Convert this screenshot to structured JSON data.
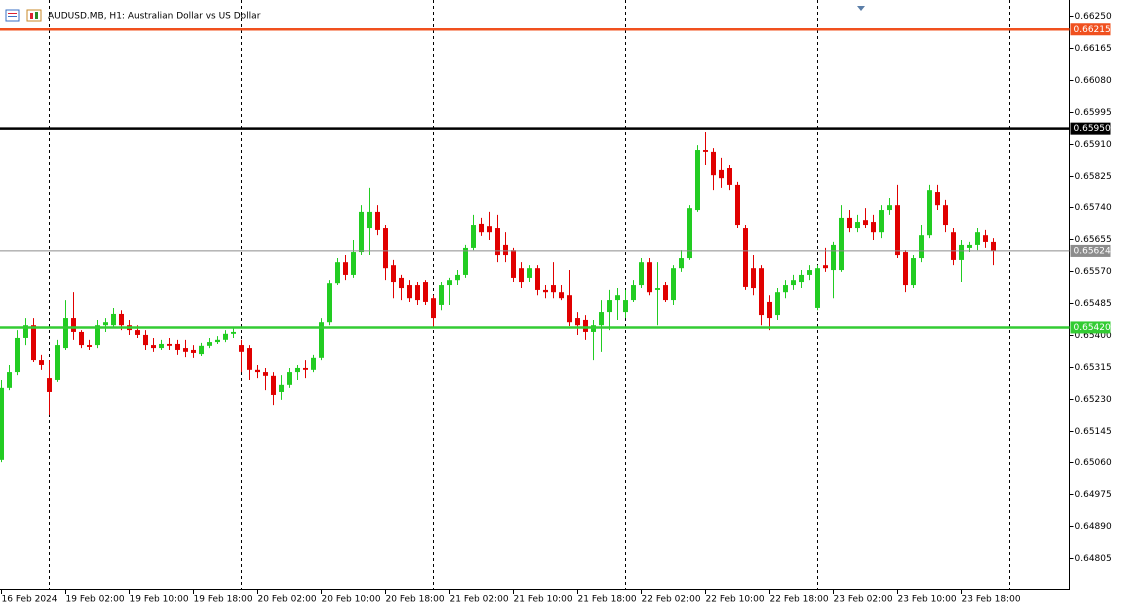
{
  "chart_data": {
    "type": "candlestick",
    "title": "AUDUSD.MB, H1:  Australian Dollar vs US Dollar",
    "categories": [
      "16 Feb 2024",
      null,
      null,
      null,
      null,
      null,
      null,
      null,
      "19 Feb 02:00",
      null,
      null,
      null,
      null,
      null,
      null,
      null,
      "19 Feb 10:00",
      null,
      null,
      null,
      null,
      null,
      null,
      null,
      "19 Feb 18:00",
      null,
      null,
      null,
      null,
      null,
      null,
      null,
      "20 Feb 02:00",
      null,
      null,
      null,
      null,
      null,
      null,
      null,
      "20 Feb 10:00",
      null,
      null,
      null,
      null,
      null,
      null,
      null,
      "20 Feb 18:00",
      null,
      null,
      null,
      null,
      null,
      null,
      null,
      "21 Feb 02:00",
      null,
      null,
      null,
      null,
      null,
      null,
      null,
      "21 Feb 10:00",
      null,
      null,
      null,
      null,
      null,
      null,
      null,
      "21 Feb 18:00",
      null,
      null,
      null,
      null,
      null,
      null,
      null,
      "22 Feb 02:00",
      null,
      null,
      null,
      null,
      null,
      null,
      null,
      "22 Feb 10:00",
      null,
      null,
      null,
      null,
      null,
      null,
      null,
      "22 Feb 18:00",
      null,
      null,
      null,
      null,
      null,
      null,
      null,
      "23 Feb 02:00",
      null,
      null,
      null,
      null,
      null,
      null,
      null,
      "23 Feb 10:00",
      null,
      null,
      null,
      null,
      null,
      null,
      null,
      "23 Feb 18:00",
      null,
      null,
      null,
      null
    ],
    "open": [
      0.65067,
      0.65259,
      0.65301,
      0.65392,
      0.65426,
      0.65333,
      0.65285,
      0.6528,
      0.65365,
      0.65445,
      0.65408,
      0.65373,
      0.65373,
      0.65426,
      0.65426,
      0.65456,
      0.65426,
      0.65413,
      0.654,
      0.65373,
      0.65365,
      0.65376,
      0.65376,
      0.65365,
      0.6536,
      0.65349,
      0.65371,
      0.65381,
      0.65387,
      0.65403,
      0.65373,
      0.65365,
      0.65307,
      0.65301,
      0.65291,
      0.65248,
      0.65267,
      0.65301,
      0.65312,
      0.65307,
      0.65339,
      0.65434,
      0.65538,
      0.65594,
      0.6556,
      0.65621,
      0.65685,
      0.65728,
      0.65685,
      0.65586,
      0.65552,
      0.65533,
      0.65533,
      0.65541,
      0.65498,
      0.6548,
      0.65533,
      0.65546,
      0.6556,
      0.65632,
      0.65696,
      0.6569,
      0.65685,
      0.6564,
      0.65626,
      0.65578,
      0.65552,
      0.65578,
      0.6552,
      0.65533,
      0.65514,
      0.65506,
      0.65445,
      0.6544,
      0.65408,
      0.65426,
      0.65461,
      0.65493,
      0.65461,
      0.65493,
      0.65533,
      0.65594,
      0.6552,
      0.65533,
      0.65493,
      0.65578,
      0.65605,
      0.65733,
      0.65893,
      0.65888,
      0.6584,
      0.65845,
      0.658,
      0.65685,
      0.65578,
      0.65578,
      0.65488,
      0.65453,
      0.65514,
      0.65533,
      0.65541,
      0.6556,
      0.65472,
      0.65586,
      0.65573,
      0.65573,
      0.65712,
      0.65685,
      0.65706,
      0.65701,
      0.65674,
      0.65733,
      0.65746,
      0.65621,
      0.65533,
      0.65605,
      0.65666,
      0.65781,
      0.65746,
      0.65674,
      0.656,
      0.65632,
      0.6564,
      0.65666,
      0.65648
    ],
    "high": [
      0.6528,
      0.6532,
      0.65413,
      0.65445,
      0.65445,
      0.65347,
      0.65333,
      0.65387,
      0.65493,
      0.65514,
      0.65413,
      0.65387,
      0.6544,
      0.65445,
      0.65472,
      0.65466,
      0.6544,
      0.65426,
      0.65413,
      0.65392,
      0.65387,
      0.65392,
      0.65387,
      0.65387,
      0.65373,
      0.65379,
      0.65392,
      0.65397,
      0.65413,
      0.65419,
      0.65387,
      0.65373,
      0.6532,
      0.65312,
      0.65301,
      0.65293,
      0.65312,
      0.6532,
      0.65333,
      0.65347,
      0.65445,
      0.65546,
      0.65605,
      0.65613,
      0.65653,
      0.65746,
      0.65792,
      0.65746,
      0.65693,
      0.656,
      0.6556,
      0.65546,
      0.65541,
      0.65546,
      0.65506,
      0.65541,
      0.65552,
      0.65573,
      0.6564,
      0.6572,
      0.65712,
      0.65728,
      0.6572,
      0.65674,
      0.65632,
      0.65594,
      0.65586,
      0.65586,
      0.65533,
      0.65594,
      0.65533,
      0.65573,
      0.65461,
      0.65453,
      0.6544,
      0.65493,
      0.6552,
      0.65525,
      0.6552,
      0.65546,
      0.65605,
      0.65605,
      0.65594,
      0.65541,
      0.65586,
      0.65626,
      0.65746,
      0.65906,
      0.65941,
      0.65898,
      0.65872,
      0.65853,
      0.65808,
      0.65693,
      0.65613,
      0.65586,
      0.65506,
      0.65525,
      0.65546,
      0.6556,
      0.65573,
      0.65586,
      0.65586,
      0.65632,
      0.65648,
      0.65746,
      0.65733,
      0.6572,
      0.65738,
      0.6572,
      0.65746,
      0.65765,
      0.658,
      0.65626,
      0.65613,
      0.65693,
      0.658,
      0.658,
      0.6576,
      0.65685,
      0.65653,
      0.65648,
      0.65685,
      0.6568,
      0.65658
    ],
    "low": [
      0.65061,
      0.65253,
      0.65293,
      0.65373,
      0.65328,
      0.65307,
      0.65187,
      0.65275,
      0.6536,
      0.65387,
      0.65365,
      0.6536,
      0.65365,
      0.65408,
      0.65419,
      0.65413,
      0.654,
      0.65392,
      0.6536,
      0.65355,
      0.6536,
      0.6536,
      0.65347,
      0.65341,
      0.65339,
      0.65344,
      0.65365,
      0.65376,
      0.65381,
      0.65392,
      0.65301,
      0.6528,
      0.65285,
      0.65253,
      0.65213,
      0.65227,
      0.65259,
      0.6528,
      0.65285,
      0.65301,
      0.65333,
      0.65426,
      0.65533,
      0.65546,
      0.65552,
      0.65613,
      0.65613,
      0.65666,
      0.65546,
      0.65498,
      0.65493,
      0.65488,
      0.6548,
      0.6548,
      0.65419,
      0.65466,
      0.6548,
      0.65533,
      0.65552,
      0.65626,
      0.65664,
      0.65653,
      0.65594,
      0.65594,
      0.65541,
      0.65525,
      0.65541,
      0.65506,
      0.65498,
      0.65498,
      0.65493,
      0.65424,
      0.654,
      0.65387,
      0.65333,
      0.65355,
      0.65413,
      0.6544,
      0.65445,
      0.65488,
      0.65525,
      0.65506,
      0.65426,
      0.65488,
      0.6548,
      0.65568,
      0.656,
      0.65728,
      0.65853,
      0.65786,
      0.65792,
      0.65786,
      0.65685,
      0.6552,
      0.65506,
      0.65426,
      0.65413,
      0.6544,
      0.65498,
      0.6552,
      0.65525,
      0.65546,
      0.65466,
      0.65568,
      0.65498,
      0.65568,
      0.65674,
      0.65674,
      0.65685,
      0.65653,
      0.65658,
      0.6572,
      0.65605,
      0.65514,
      0.65525,
      0.65594,
      0.65658,
      0.65733,
      0.65674,
      0.65586,
      0.65541,
      0.65621,
      0.65626,
      0.65632,
      0.65586
    ],
    "close": [
      0.65259,
      0.65301,
      0.65392,
      0.65426,
      0.65333,
      0.6532,
      0.65248,
      0.65373,
      0.65445,
      0.65408,
      0.65373,
      0.65368,
      0.65426,
      0.65434,
      0.65456,
      0.65426,
      0.65413,
      0.654,
      0.65373,
      0.65365,
      0.65376,
      0.65371,
      0.6536,
      0.65355,
      0.65352,
      0.65371,
      0.65381,
      0.65387,
      0.65403,
      0.65408,
      0.65355,
      0.65307,
      0.65301,
      0.65291,
      0.6524,
      0.65267,
      0.65301,
      0.65312,
      0.65307,
      0.65339,
      0.65434,
      0.65538,
      0.65594,
      0.6556,
      0.65621,
      0.65728,
      0.65728,
      0.6568,
      0.65578,
      0.65541,
      0.65525,
      0.65498,
      0.65493,
      0.65488,
      0.65445,
      0.65533,
      0.65546,
      0.6556,
      0.65632,
      0.65693,
      0.65674,
      0.65674,
      0.65613,
      0.65613,
      0.65552,
      0.65541,
      0.65578,
      0.6552,
      0.65514,
      0.65514,
      0.65498,
      0.65434,
      0.65426,
      0.65408,
      0.65426,
      0.65461,
      0.65493,
      0.65506,
      0.65493,
      0.65533,
      0.65594,
      0.65514,
      0.65525,
      0.65493,
      0.65578,
      0.65605,
      0.65738,
      0.65893,
      0.65888,
      0.65826,
      0.65818,
      0.658,
      0.65693,
      0.65528,
      0.65525,
      0.65453,
      0.65445,
      0.65514,
      0.65533,
      0.65546,
      0.6556,
      0.65573,
      0.65578,
      0.65578,
      0.6564,
      0.65712,
      0.65685,
      0.65701,
      0.65693,
      0.65674,
      0.65733,
      0.65746,
      0.65613,
      0.65533,
      0.65605,
      0.65666,
      0.65786,
      0.65746,
      0.65693,
      0.656,
      0.6564,
      0.6564,
      0.65674,
      0.65648,
      0.65624
    ],
    "up_color": "#22cc22",
    "down_color": "#e00000",
    "ylim": [
      0.6472,
      0.66293
    ],
    "yticks": [
      {
        "value": 0.6625,
        "label": "0.66250"
      },
      {
        "value": 0.66165,
        "label": "0.66165"
      },
      {
        "value": 0.6608,
        "label": "0.66080"
      },
      {
        "value": 0.65995,
        "label": "0.65995"
      },
      {
        "value": 0.6591,
        "label": "0.65910"
      },
      {
        "value": 0.65825,
        "label": "0.65825"
      },
      {
        "value": 0.6574,
        "label": "0.65740"
      },
      {
        "value": 0.65655,
        "label": "0.65655"
      },
      {
        "value": 0.6557,
        "label": "0.65570"
      },
      {
        "value": 0.65485,
        "label": "0.65485"
      },
      {
        "value": 0.654,
        "label": "0.65400"
      },
      {
        "value": 0.65315,
        "label": "0.65315"
      },
      {
        "value": 0.6523,
        "label": "0.65230"
      },
      {
        "value": 0.65145,
        "label": "0.65145"
      },
      {
        "value": 0.6506,
        "label": "0.65060"
      },
      {
        "value": 0.64975,
        "label": "0.64975"
      },
      {
        "value": 0.6489,
        "label": "0.64890"
      },
      {
        "value": 0.64805,
        "label": "0.64805"
      }
    ],
    "price_lines": {
      "values": [
        0.66215,
        0.6595,
        0.65624,
        0.6542
      ],
      "value_labels": [
        "0.66215",
        "0.65950",
        "0.65624",
        "0.65420"
      ],
      "colors": [
        "#f0501e",
        "#000000",
        "#8c8c8c",
        "#33cc33"
      ]
    },
    "grid": false
  }
}
